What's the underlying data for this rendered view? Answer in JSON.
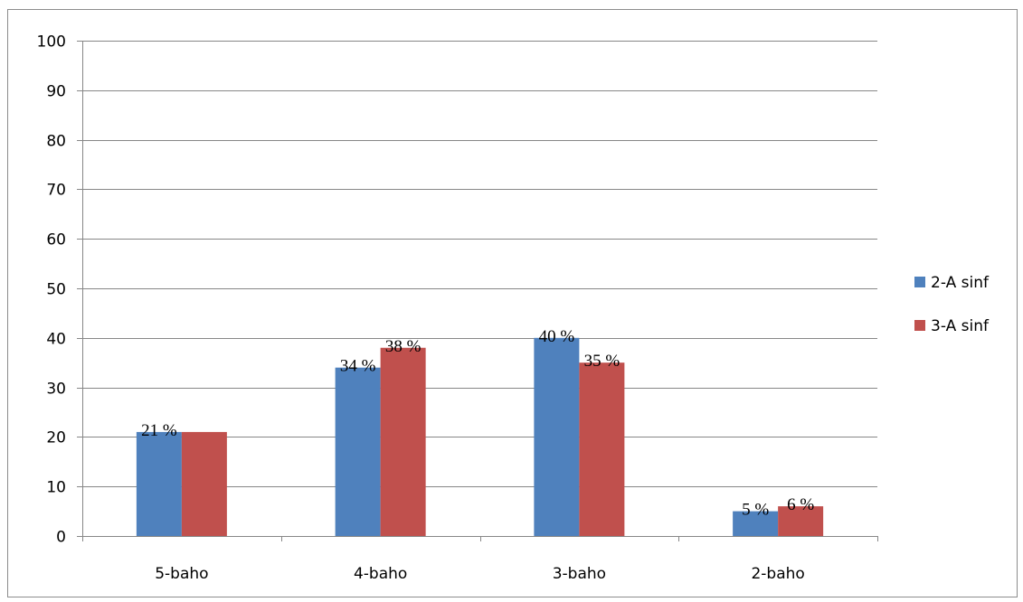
{
  "chart_data": {
    "type": "bar",
    "categories": [
      "5-baho",
      "4-baho",
      "3-baho",
      "2-baho"
    ],
    "series": [
      {
        "name": "2-A sinf",
        "color": "#4f81bd",
        "values": [
          21,
          34,
          40,
          5
        ],
        "labels": [
          "21 %",
          "34 %",
          "40 %",
          "5 %"
        ]
      },
      {
        "name": "3-A sinf",
        "color": "#c0504d",
        "values": [
          21,
          38,
          35,
          6
        ],
        "labels": [
          "",
          "38 %",
          "35 %",
          "6 %"
        ]
      }
    ],
    "ylim": [
      0,
      100
    ],
    "yticks": [
      0,
      10,
      20,
      30,
      40,
      50,
      60,
      70,
      80,
      90,
      100
    ],
    "grid": true,
    "legend_position": "right",
    "title": "",
    "xlabel": "",
    "ylabel": ""
  }
}
